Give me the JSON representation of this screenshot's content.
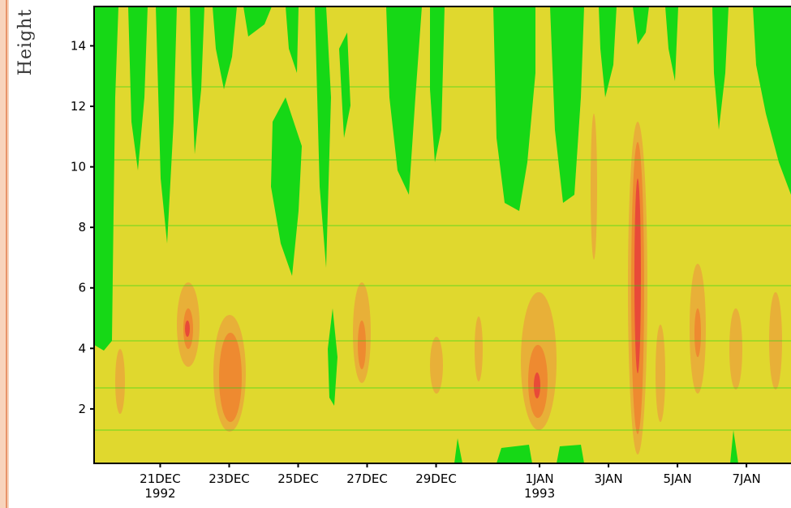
{
  "chart_data": {
    "type": "contour",
    "y_label": "Height",
    "xlim": [
      "1992-12-19T02:00:00Z",
      "1993-01-08T07:00:00Z"
    ],
    "xticks": [
      {
        "value": "1992-12-21T00:00:00Z",
        "label": "21DEC",
        "year": "1992"
      },
      {
        "value": "1992-12-23T00:00:00Z",
        "label": "23DEC"
      },
      {
        "value": "1992-12-25T00:00:00Z",
        "label": "25DEC"
      },
      {
        "value": "1992-12-27T00:00:00Z",
        "label": "27DEC"
      },
      {
        "value": "1992-12-29T00:00:00Z",
        "label": "29DEC"
      },
      {
        "value": "1993-01-01T00:00:00Z",
        "label": "1JAN",
        "year": "1993"
      },
      {
        "value": "1993-01-03T00:00:00Z",
        "label": "3JAN"
      },
      {
        "value": "1993-01-05T00:00:00Z",
        "label": "5JAN"
      },
      {
        "value": "1993-01-07T00:00:00Z",
        "label": "7JAN"
      }
    ],
    "ylim": [
      0.2,
      15.3
    ],
    "yticks": [
      2,
      4,
      6,
      8,
      10,
      12,
      14
    ],
    "level_colors": [
      "#16d816",
      "#e0d82e",
      "#e8b038",
      "#ee8a30",
      "#e84a38"
    ]
  }
}
